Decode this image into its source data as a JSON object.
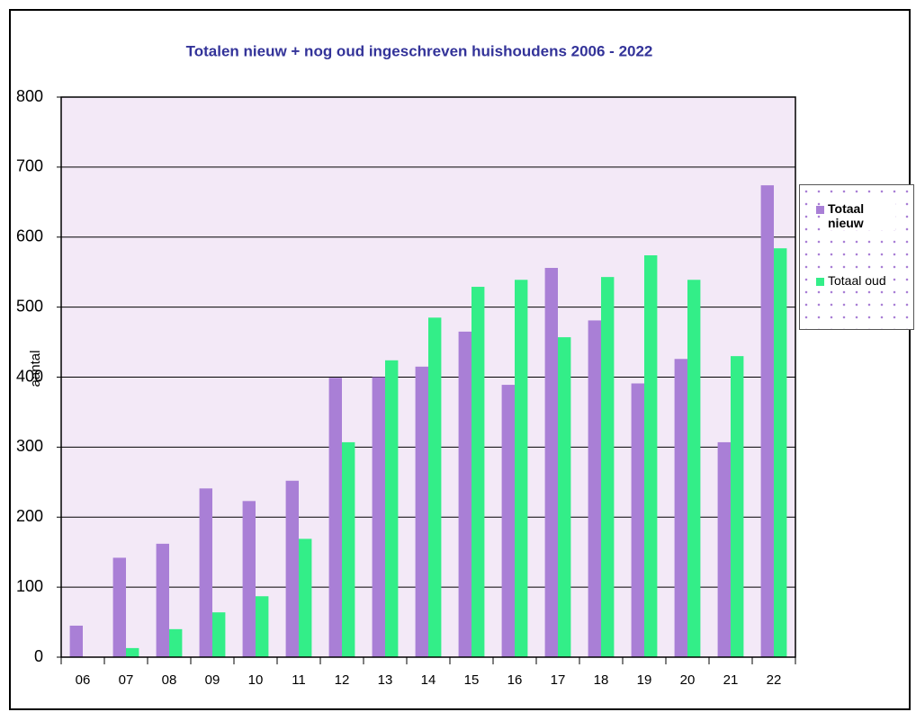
{
  "chart_data": {
    "type": "bar",
    "title": "Totalen nieuw + nog oud ingeschreven huishoudens  2006  - 2022",
    "y_label": "aantal",
    "categories": [
      "06",
      "07",
      "08",
      "09",
      "10",
      "11",
      "12",
      "13",
      "14",
      "15",
      "16",
      "17",
      "18",
      "19",
      "20",
      "21",
      "22"
    ],
    "series": [
      {
        "name": "Totaal nieuw",
        "color": "#a97fd6",
        "values": [
          45,
          142,
          162,
          241,
          223,
          252,
          399,
          400,
          415,
          465,
          389,
          556,
          481,
          391,
          426,
          307,
          674
        ]
      },
      {
        "name": "Totaal oud",
        "color": "#33ee88",
        "values": [
          0,
          13,
          40,
          64,
          87,
          169,
          307,
          424,
          485,
          529,
          539,
          457,
          543,
          574,
          539,
          430,
          584
        ]
      }
    ],
    "ylim": [
      0,
      800
    ],
    "yticks": [
      0,
      100,
      200,
      300,
      400,
      500,
      600,
      700,
      800
    ],
    "grid": true,
    "legend": "right"
  }
}
